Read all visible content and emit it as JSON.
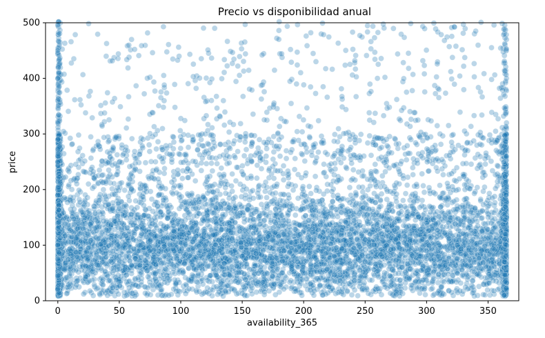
{
  "chart_data": {
    "type": "scatter",
    "title": "Precio vs disponibilidad anual",
    "xlabel": "availability_365",
    "ylabel": "price",
    "xlim": [
      -10,
      375
    ],
    "ylim": [
      0,
      500
    ],
    "xticks": [
      0,
      50,
      100,
      150,
      200,
      250,
      300,
      350
    ],
    "yticks": [
      0,
      100,
      200,
      300,
      400,
      500
    ],
    "grid": false,
    "legend": "none",
    "colors": {
      "point_fill": "#1f77b4",
      "point_edge": "#ffffff"
    },
    "point_opacity": 0.3,
    "density_description": "dense band at price 10-220 across all availability, heavy vertical clusters at availability 0 and 365, sparser points up to 500",
    "point_count_estimate": 9000,
    "representative_points": [
      [
        0,
        20
      ],
      [
        0,
        45
      ],
      [
        0,
        75
      ],
      [
        0,
        100
      ],
      [
        0,
        130
      ],
      [
        0,
        160
      ],
      [
        0,
        190
      ],
      [
        0,
        220
      ],
      [
        0,
        250
      ],
      [
        0,
        290
      ],
      [
        0,
        320
      ],
      [
        0,
        360
      ],
      [
        0,
        400
      ],
      [
        0,
        450
      ],
      [
        0,
        495
      ],
      [
        25,
        60
      ],
      [
        25,
        95
      ],
      [
        30,
        130
      ],
      [
        50,
        80
      ],
      [
        50,
        140
      ],
      [
        60,
        200
      ],
      [
        75,
        110
      ],
      [
        90,
        70
      ],
      [
        100,
        120
      ],
      [
        120,
        90
      ],
      [
        150,
        80
      ],
      [
        150,
        130
      ],
      [
        175,
        60
      ],
      [
        200,
        100
      ],
      [
        200,
        150
      ],
      [
        225,
        90
      ],
      [
        250,
        70
      ],
      [
        250,
        160
      ],
      [
        275,
        110
      ],
      [
        300,
        80
      ],
      [
        300,
        140
      ],
      [
        325,
        100
      ],
      [
        350,
        70
      ],
      [
        350,
        150
      ],
      [
        365,
        20
      ],
      [
        365,
        60
      ],
      [
        365,
        100
      ],
      [
        365,
        150
      ],
      [
        365,
        200
      ],
      [
        365,
        260
      ],
      [
        365,
        320
      ],
      [
        365,
        400
      ],
      [
        365,
        470
      ],
      [
        120,
        300
      ],
      [
        180,
        290
      ],
      [
        260,
        400
      ],
      [
        310,
        380
      ],
      [
        60,
        470
      ],
      [
        210,
        430
      ],
      [
        340,
        485
      ]
    ]
  }
}
